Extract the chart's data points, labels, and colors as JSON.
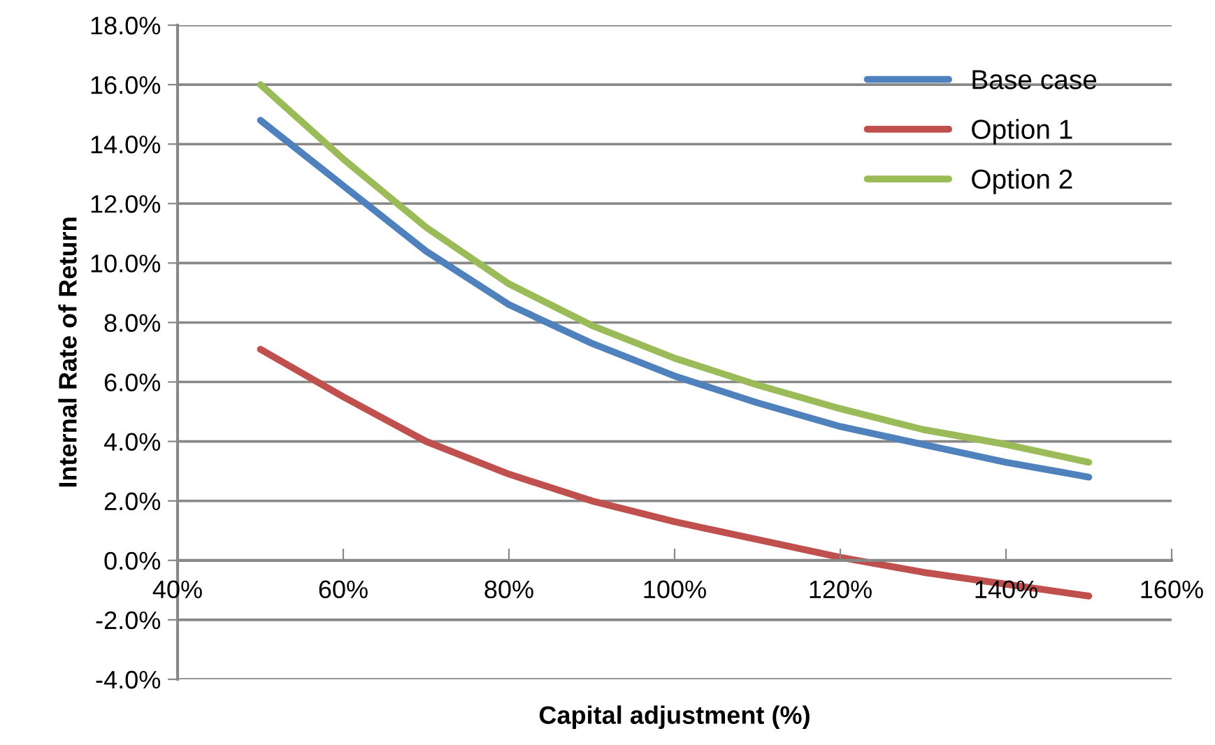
{
  "chart_data": {
    "type": "line",
    "xlabel": "Capital adjustment (%)",
    "ylabel": "Internal Rate of Return",
    "x": [
      50,
      60,
      70,
      80,
      90,
      100,
      110,
      120,
      130,
      140,
      150
    ],
    "series": [
      {
        "name": "Base case",
        "color": "#4f81bd",
        "values": [
          14.8,
          12.6,
          10.4,
          8.6,
          7.3,
          6.2,
          5.3,
          4.5,
          3.9,
          3.3,
          2.8
        ]
      },
      {
        "name": "Option 1",
        "color": "#c0504d",
        "values": [
          7.1,
          5.5,
          4.0,
          2.9,
          2.0,
          1.3,
          0.7,
          0.1,
          -0.4,
          -0.8,
          -1.2
        ]
      },
      {
        "name": "Option 2",
        "color": "#9bbb59",
        "values": [
          16.0,
          13.5,
          11.2,
          9.3,
          7.9,
          6.8,
          5.9,
          5.1,
          4.4,
          3.9,
          3.3
        ]
      }
    ],
    "xlim": [
      40,
      160
    ],
    "xticks": [
      {
        "value": 40,
        "label": "40%"
      },
      {
        "value": 60,
        "label": "60%"
      },
      {
        "value": 80,
        "label": "80%"
      },
      {
        "value": 100,
        "label": "100%"
      },
      {
        "value": 120,
        "label": "120%"
      },
      {
        "value": 140,
        "label": "140%"
      },
      {
        "value": 160,
        "label": "160%"
      }
    ],
    "ylim": [
      -4,
      18
    ],
    "yticks": [
      {
        "value": -4,
        "label": "-4.0%"
      },
      {
        "value": -2,
        "label": "-2.0%"
      },
      {
        "value": 0,
        "label": "0.0%"
      },
      {
        "value": 2,
        "label": "2.0%"
      },
      {
        "value": 4,
        "label": "4.0%"
      },
      {
        "value": 6,
        "label": "6.0%"
      },
      {
        "value": 8,
        "label": "8.0%"
      },
      {
        "value": 10,
        "label": "10.0%"
      },
      {
        "value": 12,
        "label": "12.0%"
      },
      {
        "value": 14,
        "label": "14.0%"
      },
      {
        "value": 16,
        "label": "16.0%"
      },
      {
        "value": 18,
        "label": "18.0%"
      }
    ],
    "grid": "y",
    "legend": "top right",
    "marker": "none",
    "line_style": "solid"
  }
}
